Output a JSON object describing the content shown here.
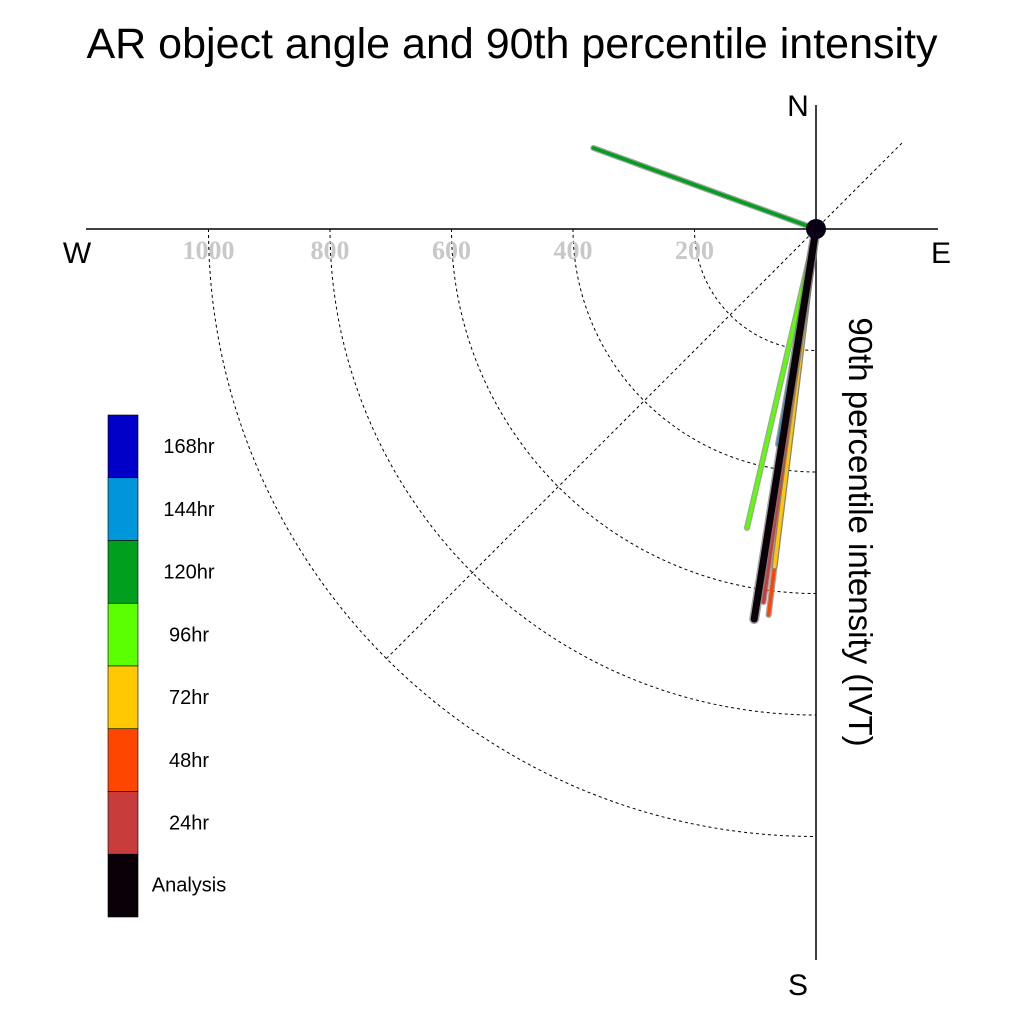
{
  "chart_data": {
    "type": "polar-line",
    "title": "AR object angle and 90th percentile intensity",
    "ylabel": "90th percentile intensity (IVT)",
    "directions": {
      "n": "N",
      "s": "S",
      "e": "E",
      "w": "W"
    },
    "r_ticks": [
      "200",
      "400",
      "600",
      "800",
      "1000"
    ],
    "r_range": [
      0,
      1200
    ],
    "grid": true,
    "legend_position": "left",
    "legend": [
      {
        "label": "168hr",
        "color": "#0000c8"
      },
      {
        "label": "144hr",
        "color": "#0096dc"
      },
      {
        "label": "120hr",
        "color": "#00a01e"
      },
      {
        "label": "96hr",
        "color": "#5aff00"
      },
      {
        "label": "72hr",
        "color": "#ffc800"
      },
      {
        "label": "48hr",
        "color": "#ff4600"
      },
      {
        "label": "24hr",
        "color": "#c83c3c"
      },
      {
        "label": "Analysis",
        "color": "#0a0008"
      }
    ],
    "series": [
      {
        "name": "120hr",
        "color": "#00a01e",
        "bearing_deg": 290,
        "intensity": 390
      },
      {
        "name": "144hr",
        "color": "#0096dc",
        "bearing_deg": 190,
        "intensity": 360
      },
      {
        "name": "96hr",
        "color": "#5aff00",
        "bearing_deg": 193,
        "intensity": 505
      },
      {
        "name": "48hr",
        "color": "#ff4600",
        "bearing_deg": 187,
        "intensity": 640
      },
      {
        "name": "72hr",
        "color": "#ffc800",
        "bearing_deg": 187,
        "intensity": 560
      },
      {
        "name": "24hr",
        "color": "#c83c3c",
        "bearing_deg": 188,
        "intensity": 620
      },
      {
        "name": "Analysis",
        "color": "#0a0008",
        "bearing_deg": 189,
        "intensity": 650
      }
    ]
  }
}
